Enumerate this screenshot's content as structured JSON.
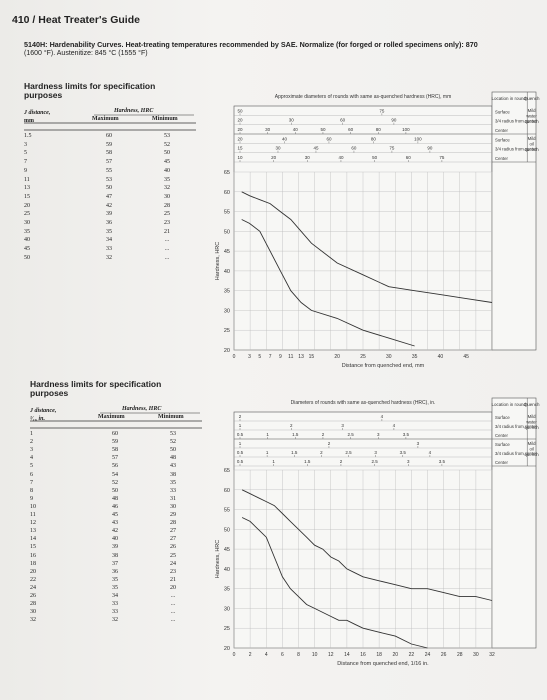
{
  "header": {
    "page_title": "410 / Heat Treater's Guide"
  },
  "title": {
    "line1": "5140H: Hardenability Curves. Heat-treating temperatures recommended by SAE. Normalize (for forged or rolled specimens only): 870",
    "line2": "(1600 °F). Austenitize: 845 °C (1555 °F)"
  },
  "table1": {
    "title_l1": "Hardness limits for specification",
    "title_l2": "purposes",
    "col_j": "J distance,",
    "col_j2": "mm",
    "col_h": "Hardness, HRC",
    "col_max": "Maximum",
    "col_min": "Minimum",
    "rows": [
      {
        "d": "1.5",
        "max": "60",
        "min": "53"
      },
      {
        "d": "3",
        "max": "59",
        "min": "52"
      },
      {
        "d": "5",
        "max": "58",
        "min": "50"
      },
      {
        "d": "7",
        "max": "57",
        "min": "45"
      },
      {
        "d": "9",
        "max": "55",
        "min": "40"
      },
      {
        "d": "11",
        "max": "53",
        "min": "35"
      },
      {
        "d": "13",
        "max": "50",
        "min": "32"
      },
      {
        "d": "15",
        "max": "47",
        "min": "30"
      },
      {
        "d": "20",
        "max": "42",
        "min": "28"
      },
      {
        "d": "25",
        "max": "39",
        "min": "25"
      },
      {
        "d": "30",
        "max": "36",
        "min": "23"
      },
      {
        "d": "35",
        "max": "35",
        "min": "21"
      },
      {
        "d": "40",
        "max": "34",
        "min": "..."
      },
      {
        "d": "45",
        "max": "33",
        "min": "..."
      },
      {
        "d": "50",
        "max": "32",
        "min": "..."
      }
    ]
  },
  "table2": {
    "title_l1": "Hardness limits for specification",
    "title_l2": "purposes",
    "col_j": "J distance,",
    "col_j2": "¹⁄₁₆ in.",
    "col_h": "Hardness, HRC",
    "col_max": "Maximum",
    "col_min": "Minimum",
    "rows": [
      {
        "d": "1",
        "max": "60",
        "min": "53"
      },
      {
        "d": "2",
        "max": "59",
        "min": "52"
      },
      {
        "d": "3",
        "max": "58",
        "min": "50"
      },
      {
        "d": "4",
        "max": "57",
        "min": "48"
      },
      {
        "d": "5",
        "max": "56",
        "min": "43"
      },
      {
        "d": "6",
        "max": "54",
        "min": "38"
      },
      {
        "d": "7",
        "max": "52",
        "min": "35"
      },
      {
        "d": "8",
        "max": "50",
        "min": "33"
      },
      {
        "d": "9",
        "max": "48",
        "min": "31"
      },
      {
        "d": "10",
        "max": "46",
        "min": "30"
      },
      {
        "d": "11",
        "max": "45",
        "min": "29"
      },
      {
        "d": "12",
        "max": "43",
        "min": "28"
      },
      {
        "d": "13",
        "max": "42",
        "min": "27"
      },
      {
        "d": "14",
        "max": "40",
        "min": "27"
      },
      {
        "d": "15",
        "max": "39",
        "min": "26"
      },
      {
        "d": "16",
        "max": "38",
        "min": "25"
      },
      {
        "d": "18",
        "max": "37",
        "min": "24"
      },
      {
        "d": "20",
        "max": "36",
        "min": "23"
      },
      {
        "d": "22",
        "max": "35",
        "min": "21"
      },
      {
        "d": "24",
        "max": "35",
        "min": "20"
      },
      {
        "d": "26",
        "max": "34",
        "min": "..."
      },
      {
        "d": "28",
        "max": "33",
        "min": "..."
      },
      {
        "d": "30",
        "max": "33",
        "min": "..."
      },
      {
        "d": "32",
        "max": "32",
        "min": "..."
      }
    ]
  },
  "chart_data": [
    {
      "type": "line",
      "title": "Approximate diameters of rounds with same as-quenched hardness (HRC), mm",
      "xlabel": "Distance from quenched end, mm",
      "ylabel": "Hardness, HRC",
      "xlim": [
        0,
        50
      ],
      "ylim": [
        20,
        65
      ],
      "x_ticks": [
        "0",
        "3",
        "5",
        "7",
        "9",
        "11",
        "13",
        "15",
        "20",
        "25",
        "30",
        "35",
        "40",
        "45"
      ],
      "x_tick_values": [
        0,
        3,
        5,
        7,
        9,
        11,
        13,
        15,
        20,
        25,
        30,
        35,
        40,
        45
      ],
      "y_ticks": [
        20,
        25,
        30,
        35,
        40,
        45,
        50,
        55,
        60,
        65
      ],
      "legend_headers": {
        "location": "Location in round",
        "quench": "Quench"
      },
      "legend_rows": [
        {
          "loc": [
            "Surface",
            "3/4 radius from center",
            "Center"
          ],
          "quench": "Mild water quench"
        },
        {
          "loc": [
            "Surface",
            "3/4 radius from center",
            "Center"
          ],
          "quench": "Mild oil quench"
        }
      ],
      "water_scale": [
        {
          "labels": [
            "50",
            "75"
          ]
        },
        {
          "labels": [
            "20",
            "30",
            "60",
            "90"
          ]
        },
        {
          "labels": [
            "20",
            "30",
            "40",
            "50",
            "60",
            "80",
            "100"
          ]
        }
      ],
      "oil_scale": [
        {
          "labels": [
            "20",
            "40",
            "60",
            "80",
            "100"
          ]
        },
        {
          "labels": [
            "15",
            "30",
            "45",
            "60",
            "75",
            "90"
          ]
        },
        {
          "labels": [
            "10",
            "20",
            "30",
            "40",
            "50",
            "60",
            "75"
          ]
        }
      ],
      "series": [
        {
          "name": "Maximum",
          "x": [
            1.5,
            3,
            5,
            7,
            9,
            11,
            13,
            15,
            20,
            25,
            30,
            35,
            40,
            45,
            50
          ],
          "values": [
            60,
            59,
            58,
            57,
            55,
            53,
            50,
            47,
            42,
            39,
            36,
            35,
            34,
            33,
            32
          ]
        },
        {
          "name": "Minimum",
          "x": [
            1.5,
            3,
            5,
            7,
            9,
            11,
            13,
            15,
            20,
            25,
            30,
            35
          ],
          "values": [
            53,
            52,
            50,
            45,
            40,
            35,
            32,
            30,
            28,
            25,
            23,
            21
          ]
        }
      ]
    },
    {
      "type": "line",
      "title": "Diameters of rounds with same as-quenched hardness (HRC), in.",
      "xlabel": "Distance from quenched end, 1/16 in.",
      "ylabel": "Hardness, HRC",
      "xlim": [
        0,
        32
      ],
      "ylim": [
        20,
        65
      ],
      "x_ticks": [
        "0",
        "2",
        "4",
        "6",
        "8",
        "10",
        "12",
        "14",
        "16",
        "18",
        "20",
        "22",
        "24",
        "26",
        "28",
        "30",
        "32"
      ],
      "x_tick_values": [
        0,
        2,
        4,
        6,
        8,
        10,
        12,
        14,
        16,
        18,
        20,
        22,
        24,
        26,
        28,
        30,
        32
      ],
      "y_ticks": [
        20,
        25,
        30,
        35,
        40,
        45,
        50,
        55,
        60,
        65
      ],
      "legend_headers": {
        "location": "Location in round",
        "quench": "Quench"
      },
      "legend_rows": [
        {
          "loc": [
            "Surface",
            "3/4 radius from center",
            "Center"
          ],
          "quench": "Mild water quench"
        },
        {
          "loc": [
            "Surface",
            "3/4 radius from center",
            "Center"
          ],
          "quench": "Mild oil quench"
        }
      ],
      "water_scale": [
        {
          "labels": [
            "2",
            "4"
          ]
        },
        {
          "labels": [
            "1",
            "2",
            "3",
            "4"
          ]
        },
        {
          "labels": [
            "0.5",
            "1",
            "1.5",
            "2",
            "2.5",
            "3",
            "3.5"
          ]
        }
      ],
      "oil_scale": [
        {
          "labels": [
            "1",
            "2",
            "3"
          ]
        },
        {
          "labels": [
            "0.5",
            "1",
            "1.5",
            "2",
            "2.5",
            "3",
            "3.5",
            "4"
          ]
        },
        {
          "labels": [
            "0.5",
            "1",
            "1.5",
            "2",
            "2.5",
            "3",
            "3.5"
          ]
        }
      ],
      "series": [
        {
          "name": "Maximum",
          "x": [
            1,
            2,
            3,
            4,
            5,
            6,
            7,
            8,
            9,
            10,
            11,
            12,
            13,
            14,
            15,
            16,
            18,
            20,
            22,
            24,
            26,
            28,
            30,
            32
          ],
          "values": [
            60,
            59,
            58,
            57,
            56,
            54,
            52,
            50,
            48,
            46,
            45,
            43,
            42,
            40,
            39,
            38,
            37,
            36,
            35,
            35,
            34,
            33,
            33,
            32
          ]
        },
        {
          "name": "Minimum",
          "x": [
            1,
            2,
            3,
            4,
            5,
            6,
            7,
            8,
            9,
            10,
            11,
            12,
            13,
            14,
            15,
            16,
            18,
            20,
            22,
            24
          ],
          "values": [
            53,
            52,
            50,
            48,
            43,
            38,
            35,
            33,
            31,
            30,
            29,
            28,
            27,
            27,
            26,
            25,
            24,
            23,
            21,
            20
          ]
        }
      ]
    }
  ]
}
